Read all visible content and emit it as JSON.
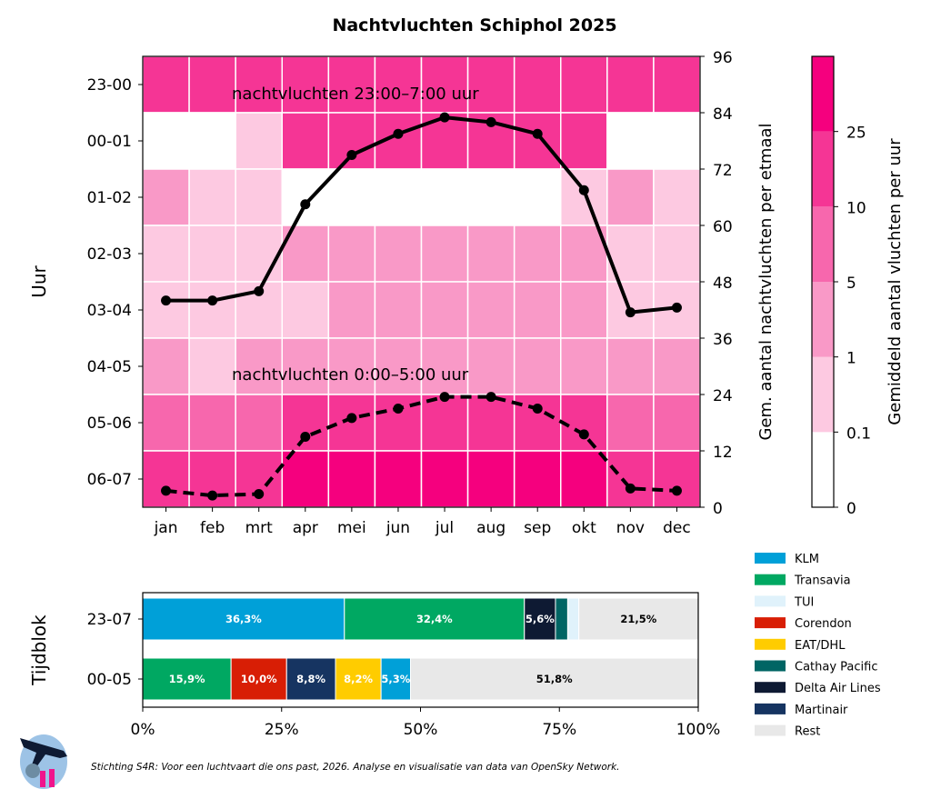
{
  "title": "Nachtvluchten Schiphol 2025",
  "footer": "Stichting S4R: Voor een luchtvaart die ons past, 2026. Analyse en visualisatie van data van OpenSky Network.",
  "logo_text": "S4R",
  "chart_data": [
    {
      "type": "heatmap",
      "ylabel": "Uur",
      "right_ylabel": "Gem. aantal nachtvluchten per etmaal",
      "months": [
        "jan",
        "feb",
        "mrt",
        "apr",
        "mei",
        "jun",
        "jul",
        "aug",
        "sep",
        "okt",
        "nov",
        "dec"
      ],
      "hours": [
        "23-00",
        "00-01",
        "01-02",
        "02-03",
        "03-04",
        "04-05",
        "05-06",
        "06-07"
      ],
      "level_bounds": [
        0,
        0.1,
        1,
        5,
        10,
        25
      ],
      "colorbar_label": "Gemiddeld aantal vluchten per uur",
      "colorbar_ticks": [
        "0",
        "0.1",
        "1",
        "5",
        "10",
        "25"
      ],
      "level_colors": [
        "#ffffff",
        "#fdc9e1",
        "#f999c7",
        "#f767ad",
        "#f53595",
        "#f5007e"
      ],
      "levels_by_hour": [
        [
          4,
          4,
          4,
          4,
          4,
          4,
          4,
          4,
          4,
          4,
          4,
          4
        ],
        [
          0,
          0,
          1,
          4,
          4,
          4,
          4,
          4,
          4,
          4,
          0,
          0
        ],
        [
          2,
          1,
          1,
          0,
          0,
          0,
          0,
          0,
          0,
          1,
          2,
          1
        ],
        [
          1,
          1,
          1,
          2,
          2,
          2,
          2,
          2,
          2,
          2,
          1,
          1
        ],
        [
          1,
          1,
          1,
          1,
          2,
          2,
          2,
          2,
          2,
          2,
          1,
          1
        ],
        [
          2,
          1,
          2,
          2,
          2,
          2,
          2,
          2,
          2,
          2,
          2,
          2
        ],
        [
          3,
          3,
          3,
          4,
          4,
          4,
          4,
          4,
          4,
          4,
          3,
          3
        ],
        [
          4,
          4,
          4,
          5,
          5,
          5,
          5,
          5,
          5,
          5,
          4,
          4
        ]
      ],
      "right_ylim": [
        0,
        96
      ],
      "right_yticks": [
        0,
        12,
        24,
        36,
        48,
        60,
        72,
        84,
        96
      ],
      "series": [
        {
          "name": "nachtvluchten 23:00–7:00 uur",
          "style": "solid",
          "values": [
            44,
            44,
            46,
            64.5,
            75,
            79.5,
            83,
            82,
            79.5,
            67.5,
            41.5,
            42.5
          ]
        },
        {
          "name": "nachtvluchten 0:00–5:00 uur",
          "style": "dashed",
          "values": [
            3.5,
            2.5,
            2.8,
            15,
            19,
            21,
            23.5,
            23.5,
            21,
            15.5,
            4,
            3.5
          ]
        }
      ]
    },
    {
      "type": "bar",
      "orientation": "horizontal-stacked",
      "ylabel": "Tijdblok",
      "categories": [
        "23-07",
        "00-05"
      ],
      "xticks": [
        "0%",
        "25%",
        "50%",
        "75%",
        "100%"
      ],
      "xlim": [
        0,
        100
      ],
      "legend": [
        {
          "name": "KLM",
          "color": "#00a0d8"
        },
        {
          "name": "Transavia",
          "color": "#00a862"
        },
        {
          "name": "TUI",
          "color": "#e0f2fb"
        },
        {
          "name": "Corendon",
          "color": "#d81e05"
        },
        {
          "name": "EAT/DHL",
          "color": "#ffcc00"
        },
        {
          "name": "Cathay Pacific",
          "color": "#006564"
        },
        {
          "name": "Delta Air Lines",
          "color": "#0e1a33"
        },
        {
          "name": "Martinair",
          "color": "#163461"
        },
        {
          "name": "Rest",
          "color": "#e8e8e8"
        }
      ],
      "stacks": [
        [
          {
            "airline": "KLM",
            "value": 36.3,
            "label": "36,3%"
          },
          {
            "airline": "Transavia",
            "value": 32.4,
            "label": "32,4%"
          },
          {
            "airline": "Delta Air Lines",
            "value": 5.6,
            "label": "5,6%"
          },
          {
            "airline": "Cathay Pacific",
            "value": 2.2,
            "label": ""
          },
          {
            "airline": "TUI",
            "value": 2.0,
            "label": ""
          },
          {
            "airline": "Rest",
            "value": 21.5,
            "label": "21,5%"
          }
        ],
        [
          {
            "airline": "Transavia",
            "value": 15.9,
            "label": "15,9%"
          },
          {
            "airline": "Corendon",
            "value": 10.0,
            "label": "10,0%"
          },
          {
            "airline": "Martinair",
            "value": 8.8,
            "label": "8,8%"
          },
          {
            "airline": "EAT/DHL",
            "value": 8.2,
            "label": "8,2%"
          },
          {
            "airline": "KLM",
            "value": 5.3,
            "label": "5,3%"
          },
          {
            "airline": "Rest",
            "value": 51.8,
            "label": "51,8%"
          }
        ]
      ]
    }
  ]
}
